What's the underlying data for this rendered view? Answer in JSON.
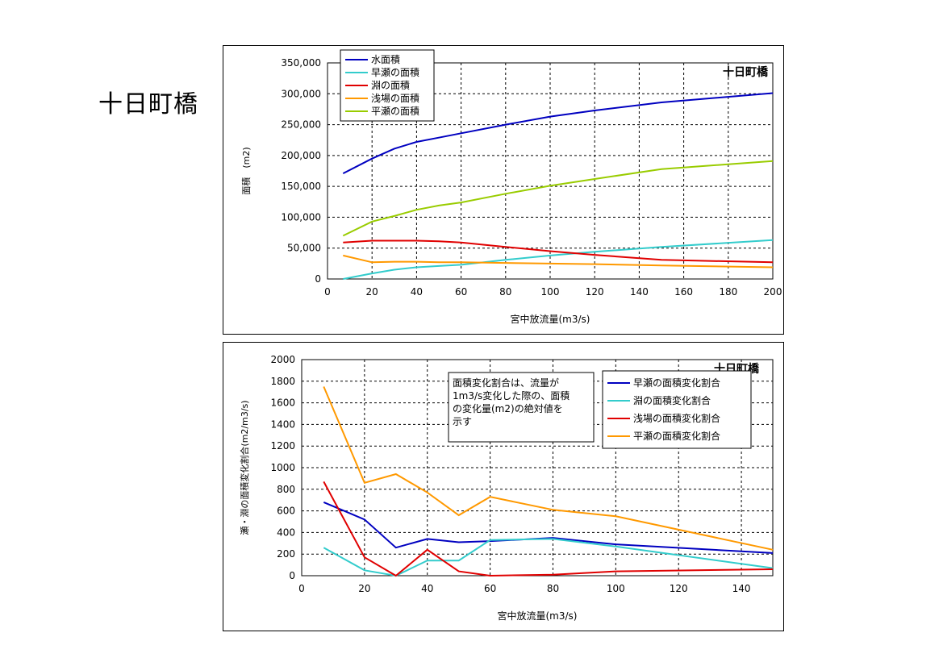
{
  "page": {
    "title": "十日町橋"
  },
  "chart_data": [
    {
      "type": "line",
      "title": "十日町橋",
      "xlabel": "宮中放流量(m3/s)",
      "ylabel": "面積　(m2)",
      "xlim": [
        0,
        200
      ],
      "ylim": [
        0,
        350000
      ],
      "xticks": [
        0,
        20,
        40,
        60,
        80,
        100,
        120,
        140,
        160,
        180,
        200
      ],
      "xtick_labels": [
        "0",
        "20",
        "40",
        "60",
        "80",
        "100",
        "120",
        "140",
        "160",
        "180",
        "200"
      ],
      "yticks": [
        0,
        50000,
        100000,
        150000,
        200000,
        250000,
        300000,
        350000
      ],
      "ytick_labels": [
        "0",
        "50,000",
        "100,000",
        "150,000",
        "200,000",
        "250,000",
        "300,000",
        "350,000"
      ],
      "grid": true,
      "legend": "top-left",
      "series": [
        {
          "name": "水面積",
          "color": "#0000c0",
          "x": [
            7,
            20,
            30,
            40,
            50,
            60,
            80,
            100,
            120,
            150,
            200
          ],
          "y": [
            171000,
            195000,
            211000,
            222000,
            229000,
            236000,
            250000,
            263000,
            273000,
            286000,
            301000
          ]
        },
        {
          "name": "早瀬の面積",
          "color": "#33cccc",
          "x": [
            7,
            20,
            30,
            40,
            50,
            60,
            80,
            100,
            120,
            150,
            200
          ],
          "y": [
            0,
            9000,
            15000,
            19000,
            21000,
            23000,
            31000,
            38000,
            44000,
            52000,
            63000
          ]
        },
        {
          "name": "淵の面積",
          "color": "#e00000",
          "x": [
            7,
            20,
            30,
            40,
            50,
            60,
            80,
            100,
            120,
            150,
            200
          ],
          "y": [
            59000,
            62000,
            62000,
            62000,
            61000,
            59000,
            52000,
            45000,
            39000,
            31000,
            27000
          ]
        },
        {
          "name": "浅場の面積",
          "color": "#ff9900",
          "x": [
            7,
            20,
            30,
            40,
            50,
            60,
            80,
            100,
            120,
            150,
            200
          ],
          "y": [
            38000,
            27000,
            28000,
            28000,
            27000,
            27000,
            26000,
            25000,
            24000,
            22000,
            19000
          ]
        },
        {
          "name": "平瀬の面積",
          "color": "#99cc00",
          "x": [
            7,
            20,
            30,
            40,
            50,
            60,
            80,
            100,
            120,
            150,
            200
          ],
          "y": [
            70000,
            93000,
            102000,
            112000,
            119000,
            124000,
            138000,
            151000,
            162000,
            178000,
            191000
          ]
        }
      ]
    },
    {
      "type": "line",
      "title": "十日町橋",
      "xlabel": "宮中放流量(m3/s)",
      "ylabel": "瀬・淵の面積変化割合(m2/m3/s)",
      "xlim": [
        0,
        150
      ],
      "ylim": [
        0,
        2000
      ],
      "xticks": [
        0,
        20,
        40,
        60,
        80,
        100,
        120,
        140
      ],
      "xtick_labels": [
        "0",
        "20",
        "40",
        "60",
        "80",
        "100",
        "120",
        "140"
      ],
      "yticks": [
        0,
        200,
        400,
        600,
        800,
        1000,
        1200,
        1400,
        1600,
        1800,
        2000
      ],
      "ytick_labels": [
        "0",
        "200",
        "400",
        "600",
        "800",
        "1000",
        "1200",
        "1400",
        "1600",
        "1800",
        "2000"
      ],
      "grid": true,
      "legend": "top-right",
      "annotation": [
        "面積変化割合は、流量が",
        "1m3/s変化した際の、面積",
        "の変化量(m2)の絶対値を",
        "示す"
      ],
      "series": [
        {
          "name": "早瀬の面積変化割合",
          "color": "#0000c0",
          "x": [
            7,
            20,
            30,
            40,
            50,
            60,
            80,
            100,
            150
          ],
          "y": [
            680,
            520,
            260,
            340,
            310,
            320,
            350,
            290,
            210
          ]
        },
        {
          "name": "淵の面積変化割合",
          "color": "#33cccc",
          "x": [
            7,
            20,
            30,
            40,
            50,
            60,
            80,
            100,
            150
          ],
          "y": [
            260,
            50,
            0,
            140,
            140,
            330,
            340,
            270,
            70
          ]
        },
        {
          "name": "浅場の面積変化割合",
          "color": "#e00000",
          "x": [
            7,
            20,
            30,
            40,
            50,
            60,
            80,
            100,
            150
          ],
          "y": [
            870,
            170,
            0,
            240,
            40,
            0,
            10,
            40,
            60
          ]
        },
        {
          "name": "平瀬の面積変化割合",
          "color": "#ff9900",
          "x": [
            7,
            20,
            30,
            40,
            50,
            60,
            80,
            100,
            150
          ],
          "y": [
            1750,
            860,
            940,
            770,
            560,
            730,
            610,
            550,
            240
          ]
        }
      ]
    }
  ]
}
